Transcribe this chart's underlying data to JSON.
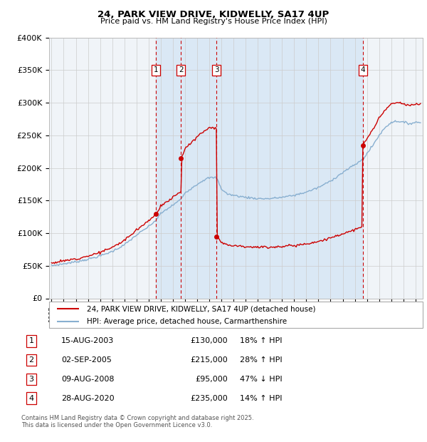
{
  "title": "24, PARK VIEW DRIVE, KIDWELLY, SA17 4UP",
  "subtitle": "Price paid vs. HM Land Registry's House Price Index (HPI)",
  "legend_line1": "24, PARK VIEW DRIVE, KIDWELLY, SA17 4UP (detached house)",
  "legend_line2": "HPI: Average price, detached house, Carmarthenshire",
  "footer": "Contains HM Land Registry data © Crown copyright and database right 2025.\nThis data is licensed under the Open Government Licence v3.0.",
  "transactions": [
    {
      "num": 1,
      "date": "15-AUG-2003",
      "price": 130000,
      "pct": "18%",
      "dir": "↑"
    },
    {
      "num": 2,
      "date": "02-SEP-2005",
      "price": 215000,
      "pct": "28%",
      "dir": "↑"
    },
    {
      "num": 3,
      "date": "09-AUG-2008",
      "price": 95000,
      "pct": "47%",
      "dir": "↓"
    },
    {
      "num": 4,
      "date": "28-AUG-2020",
      "price": 235000,
      "pct": "14%",
      "dir": "↑"
    }
  ],
  "transaction_years": [
    2003.62,
    2005.67,
    2008.61,
    2020.65
  ],
  "ylim": [
    0,
    400000
  ],
  "xlim_start": 1994.8,
  "xlim_end": 2025.6,
  "red_color": "#cc0000",
  "blue_color": "#88afd0",
  "bg_shade_color": "#dae8f5",
  "chart_bg": "#f0f4f8",
  "grid_color": "#cccccc",
  "box_edge": "#cc0000",
  "box_bg": "#ffffff"
}
